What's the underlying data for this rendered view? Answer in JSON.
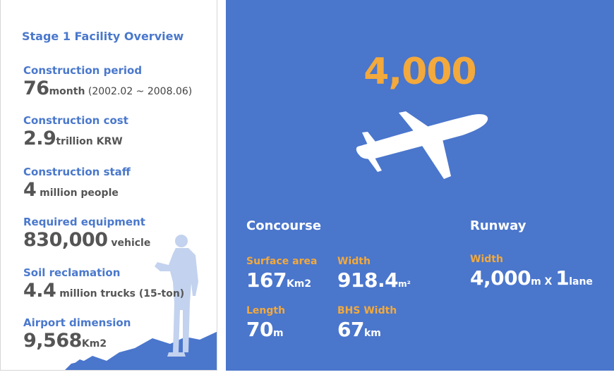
{
  "overview": {
    "title": "Stage 1 Facility Overview",
    "items": [
      {
        "label": "Construction period",
        "value": "76",
        "unit": "month",
        "note": " (2002.02 ~ 2008.06)"
      },
      {
        "label": "Construction cost",
        "value": "2.9",
        "unit": "trillion KRW",
        "note": ""
      },
      {
        "label": "Construction staff",
        "value": "4",
        "unit": " million people",
        "note": ""
      },
      {
        "label": "Required equipment",
        "value": "830,000",
        "unit": " vehicle",
        "note": ""
      },
      {
        "label": "Soil reclamation",
        "value": "4.4",
        "unit": " million trucks (15-ton)",
        "note": ""
      },
      {
        "label": "Airport dimension",
        "value": "9,568",
        "unit": "Km2",
        "note": ""
      }
    ]
  },
  "highlight": {
    "number": "4,000",
    "icon": "airplane-icon",
    "accent_color": "#f3a93b",
    "panel_color": "#4a76cc"
  },
  "concourse": {
    "title": "Concourse",
    "surface_area": {
      "label": "Surface area",
      "value": "167",
      "unit": "Km2"
    },
    "width": {
      "label": "Width",
      "value": "918.4",
      "unit": "m²"
    },
    "length": {
      "label": "Length",
      "value": "70",
      "unit": "m"
    },
    "bhs_width": {
      "label": "BHS Width",
      "value": "67",
      "unit": "km"
    }
  },
  "runway": {
    "title": "Runway",
    "width": {
      "label": "Width",
      "value": "4,000",
      "unit": "m",
      "sep": " X ",
      "value2": "1",
      "unit2": "lane"
    }
  }
}
